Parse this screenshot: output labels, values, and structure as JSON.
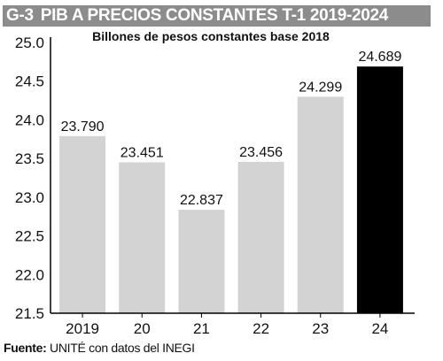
{
  "header": {
    "code": "G-3",
    "title": "PIB A PRECIOS CONSTANTES T-1 2019-2024"
  },
  "source": {
    "label": "Fuente:",
    "text": "UNITÉ con datos del INEGI"
  },
  "chart_data": {
    "type": "bar",
    "title": "PIB A PRECIOS CONSTANTES T-1 2019-2024",
    "subtitle": "Billones de pesos constantes base 2018",
    "xlabel": "",
    "ylabel": "",
    "categories": [
      "2019",
      "20",
      "21",
      "22",
      "23",
      "24"
    ],
    "values": [
      23.79,
      23.451,
      22.837,
      23.456,
      24.299,
      24.689
    ],
    "value_labels": [
      "23.790",
      "23.451",
      "22.837",
      "23.456",
      "24.299",
      "24.689"
    ],
    "ylim": [
      21.5,
      25.0
    ],
    "yticks": [
      21.5,
      22.0,
      22.5,
      23.0,
      23.5,
      24.0,
      24.5,
      25.0
    ],
    "ytick_labels": [
      "21.5",
      "22.0",
      "22.5",
      "23.0",
      "23.5",
      "24.0",
      "24.5",
      "25.0"
    ],
    "grid": false,
    "colors": {
      "default": "#d3d3d3",
      "highlight": "#000000"
    },
    "highlight_index": 5
  }
}
